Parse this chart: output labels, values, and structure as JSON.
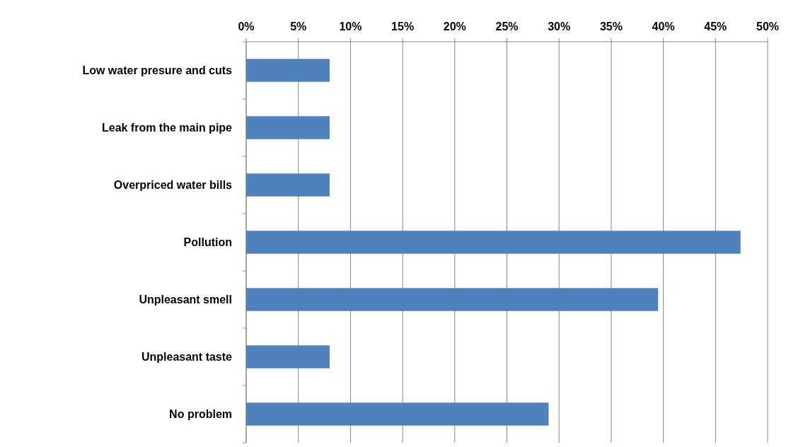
{
  "chart_data": {
    "type": "bar",
    "orientation": "horizontal",
    "categories": [
      "Low water presure and cuts",
      "Leak from the main pipe",
      "Overpriced water bills",
      "Pollution",
      "Unpleasant smell",
      "Unpleasant taste",
      "No problem"
    ],
    "values": [
      8,
      8,
      8,
      47.4,
      39.5,
      8,
      29
    ],
    "color": "#4f81bd",
    "xlim": [
      0,
      50
    ],
    "xticks": [
      {
        "value": 0,
        "label": "0%"
      },
      {
        "value": 5,
        "label": "5%"
      },
      {
        "value": 10,
        "label": "10%"
      },
      {
        "value": 15,
        "label": "15%"
      },
      {
        "value": 20,
        "label": "20%"
      },
      {
        "value": 25,
        "label": "25%"
      },
      {
        "value": 30,
        "label": "30%"
      },
      {
        "value": 35,
        "label": "35%"
      },
      {
        "value": 40,
        "label": "40%"
      },
      {
        "value": 45,
        "label": "45%"
      },
      {
        "value": 50,
        "label": "50%"
      }
    ],
    "grid": "x"
  }
}
